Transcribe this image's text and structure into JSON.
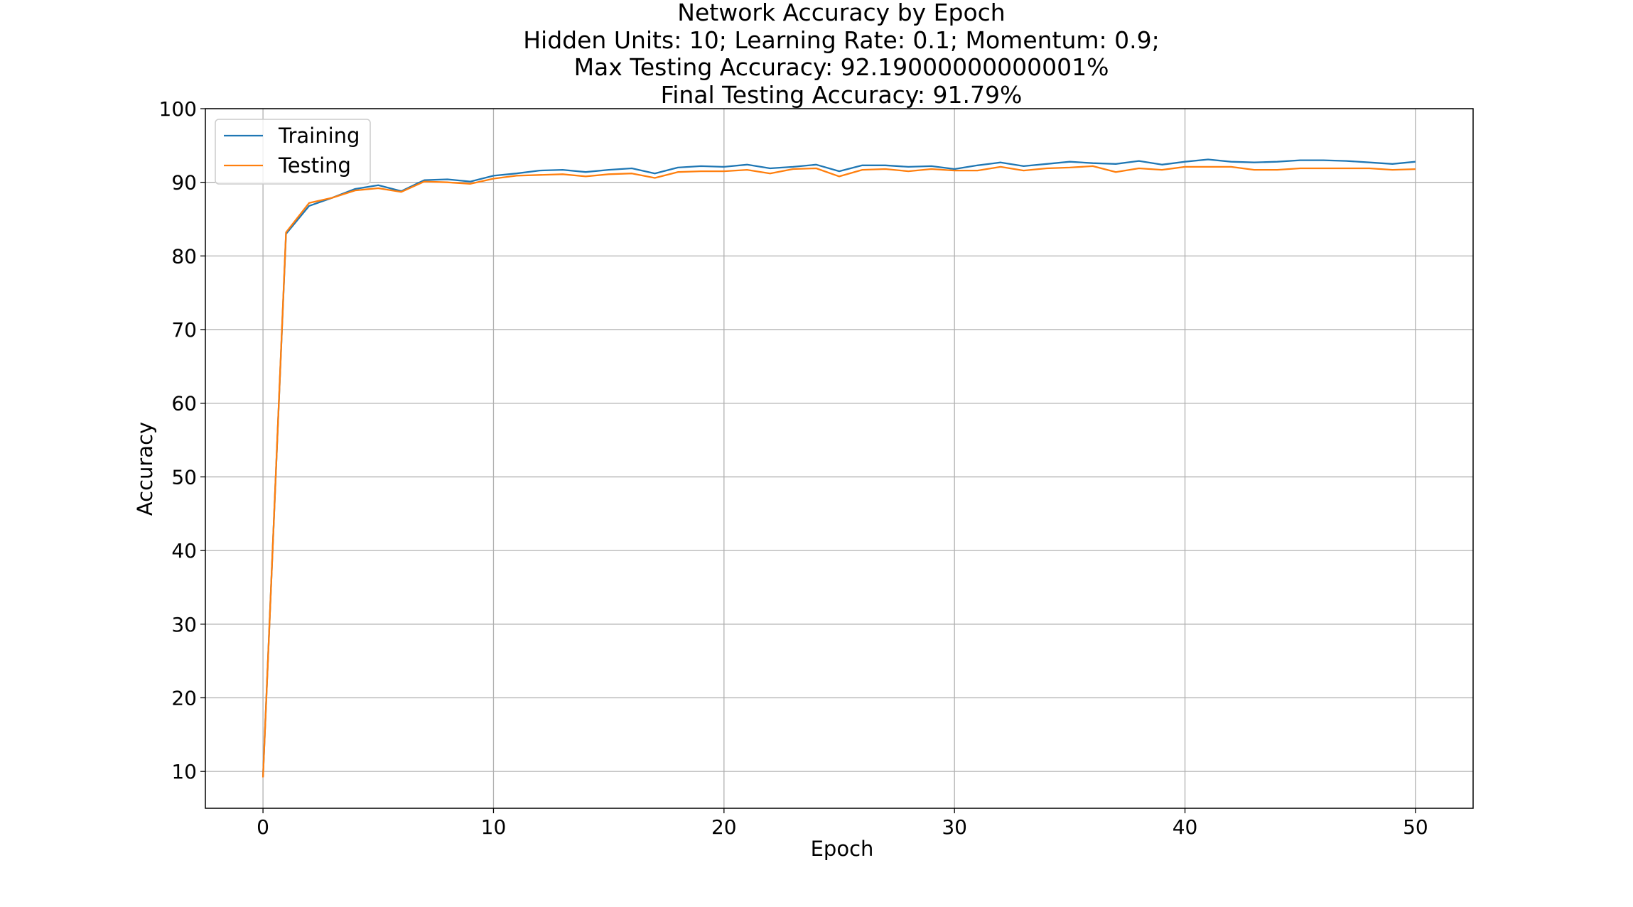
{
  "chart_data": {
    "type": "line",
    "title_lines": [
      "Network Accuracy by Epoch",
      "Hidden Units: 10;   Learning Rate: 0.1;   Momentum: 0.9;",
      "Max Testing Accuracy:  92.19000000000001%",
      "Final Testing Accuracy: 91.79%"
    ],
    "xlabel": "Epoch",
    "ylabel": "Accuracy",
    "xlim": [
      -2.5,
      52.5
    ],
    "ylim": [
      5,
      100
    ],
    "xticks": [
      0,
      10,
      20,
      30,
      40,
      50
    ],
    "yticks": [
      10,
      20,
      30,
      40,
      50,
      60,
      70,
      80,
      90,
      100
    ],
    "grid": true,
    "legend_position": "upper-left",
    "x": [
      0,
      1,
      2,
      3,
      4,
      5,
      6,
      7,
      8,
      9,
      10,
      11,
      12,
      13,
      14,
      15,
      16,
      17,
      18,
      19,
      20,
      21,
      22,
      23,
      24,
      25,
      26,
      27,
      28,
      29,
      30,
      31,
      32,
      33,
      34,
      35,
      36,
      37,
      38,
      39,
      40,
      41,
      42,
      43,
      44,
      45,
      46,
      47,
      48,
      49,
      50
    ],
    "series": [
      {
        "name": "Training",
        "color": "#1f77b4",
        "values": [
          9.3,
          83.0,
          86.8,
          87.9,
          89.1,
          89.6,
          88.8,
          90.3,
          90.4,
          90.1,
          90.9,
          91.2,
          91.6,
          91.7,
          91.4,
          91.7,
          91.9,
          91.2,
          92.0,
          92.2,
          92.1,
          92.4,
          91.9,
          92.1,
          92.4,
          91.5,
          92.3,
          92.3,
          92.1,
          92.2,
          91.8,
          92.3,
          92.7,
          92.2,
          92.5,
          92.8,
          92.6,
          92.5,
          92.9,
          92.4,
          92.8,
          93.1,
          92.8,
          92.7,
          92.8,
          93.0,
          93.0,
          92.9,
          92.7,
          92.5,
          92.8
        ]
      },
      {
        "name": "Testing",
        "color": "#ff7f0e",
        "values": [
          9.2,
          83.2,
          87.2,
          87.9,
          88.9,
          89.2,
          88.7,
          90.1,
          90.0,
          89.8,
          90.5,
          90.9,
          91.0,
          91.1,
          90.8,
          91.1,
          91.2,
          90.6,
          91.4,
          91.5,
          91.5,
          91.7,
          91.2,
          91.8,
          91.9,
          90.8,
          91.7,
          91.8,
          91.5,
          91.8,
          91.6,
          91.6,
          92.1,
          91.6,
          91.9,
          92.0,
          92.2,
          91.4,
          91.9,
          91.7,
          92.1,
          92.1,
          92.1,
          91.7,
          91.7,
          91.9,
          91.9,
          91.9,
          91.9,
          91.7,
          91.79
        ]
      }
    ]
  }
}
